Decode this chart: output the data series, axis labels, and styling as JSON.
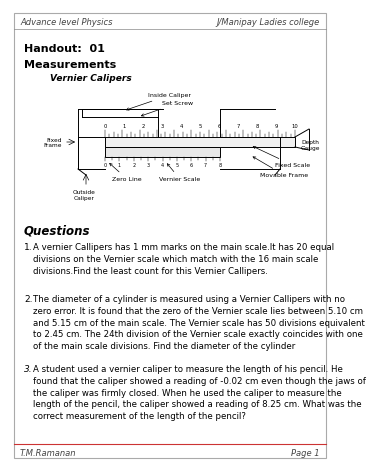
{
  "header_left": "Advance level Physics",
  "header_right": "J/Manipay Ladies college",
  "footer_left": "T.M.Ramanan",
  "footer_right": "Page 1",
  "handout": "Handout:  01",
  "topic": "Measurements",
  "subtopic": "Vernier Calipers",
  "questions_title": "Questions",
  "q1_num": "1.",
  "q1_text": "A vernier Callipers has 1 mm marks on the main scale.It has 20 equal\ndivisions on the Vernier scale which match with the 16 main scale\ndivisions.Find the least count for this Vernier Callipers.",
  "q2_num": "2.",
  "q2_text": "The diameter of a cylinder is measured using a Vernier Callipers with no\nzero error. It is found that the zero of the Vernier scale lies between 5.10 cm\nand 5.15 cm of the main scale. The Vernier scale has 50 divisions equivalent\nto 2.45 cm. The 24th division of the Vernier scale exactly coincides with one\nof the main scale divisions. Find the diameter of the cylinder",
  "q3_num": "3.",
  "q3_text": "A student used a vernier caliper to measure the length of his pencil. He\nfound that the caliper showed a reading of -0.02 cm even though the jaws of\nthe caliper was firmly closed. When he used the caliper to measure the\nlength of the pencil, the caliper showed a reading of 8.25 cm. What was the\ncorrect measurement of the length of the pencil?",
  "bg_color": "#ffffff",
  "border_color": "#888888",
  "text_color": "#000000",
  "gray_color": "#555555"
}
